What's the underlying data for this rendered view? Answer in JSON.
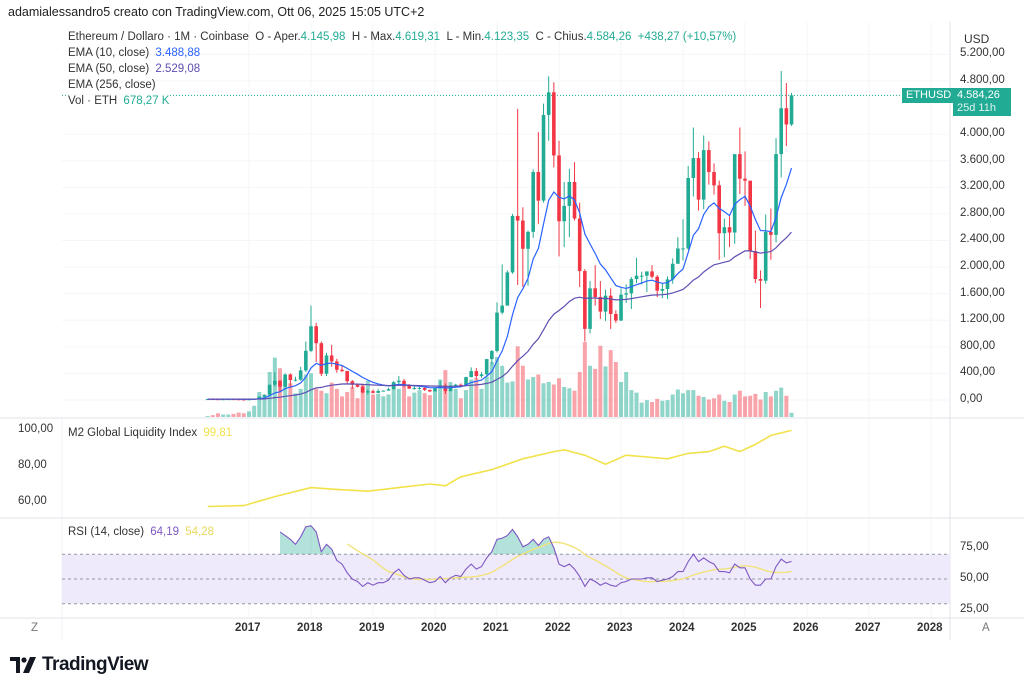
{
  "attribution": "adamialessandro5 creato con TradingView.com, Ott 06, 2025 15:05 UTC+2",
  "legend": {
    "symbol": "Ethereum / Dollaro · 1M · Coinbase",
    "open_label": "O - Aper.",
    "open": "4.145,98",
    "high_label": "H - Max.",
    "high": "4.619,31",
    "low_label": "L - Min.",
    "low": "4.123,35",
    "close_label": "C - Chius.",
    "close": "4.584,26",
    "change": "+438,27 (+10,57%)",
    "ema10_label": "EMA (10, close)",
    "ema10_value": "3.488,88",
    "ema50_label": "EMA (50, close)",
    "ema50_value": "2.529,08",
    "ema256_label": "EMA (256, close)",
    "vol_label": "Vol · ETH",
    "vol_value": "678,27 K"
  },
  "price_axis": {
    "currency": "USD",
    "ticks": [
      "5.200,00",
      "4.800,00",
      "4.000,00",
      "3.600,00",
      "3.200,00",
      "2.800,00",
      "2.400,00",
      "2.000,00",
      "1.600,00",
      "1.200,00",
      "800,00",
      "400,00",
      "0,00"
    ],
    "tick_values": [
      5200,
      4800,
      4000,
      3600,
      3200,
      2800,
      2400,
      2000,
      1600,
      1200,
      800,
      400,
      0
    ],
    "last_symbol": "ETHUSD",
    "last_price": "4.584,26",
    "countdown": "25d 11h"
  },
  "m2_pane": {
    "label": "M2 Global Liquidity Index",
    "value": "99,81",
    "ticks": [
      "100,00",
      "80,00",
      "60,00"
    ],
    "tick_values": [
      100,
      80,
      60
    ]
  },
  "rsi_pane": {
    "label": "RSI (14, close)",
    "value": "64,19",
    "ma_value": "54,28",
    "ticks": [
      "75,00",
      "50,00",
      "25,00"
    ],
    "tick_values": [
      75,
      50,
      25
    ],
    "bands": [
      70,
      50,
      30
    ]
  },
  "time_axis": {
    "labels": [
      "2017",
      "2018",
      "2019",
      "2020",
      "2021",
      "2022",
      "2023",
      "2024",
      "2025",
      "2026",
      "2027",
      "2028"
    ],
    "left_button": "Z",
    "right_button": "A"
  },
  "brand": "TradingView",
  "colors": {
    "up": "#22ab94",
    "down": "#f23645",
    "ema10": "#2962ff",
    "ema50": "#5e4fb3",
    "m2": "#f2e24a",
    "rsi": "#7e57c2",
    "rsi_ma": "#f2e27a",
    "rsi_band": "#efeafb"
  },
  "chart_data": {
    "type": "candlestick",
    "interval": "1M",
    "start": "2016-05",
    "end": "2025-10",
    "ylim": [
      0,
      5400
    ],
    "grid": true,
    "ohlc": [
      [
        11,
        14.5,
        9,
        14
      ],
      [
        14,
        21,
        10,
        12
      ],
      [
        12,
        14.5,
        10,
        11.5
      ],
      [
        11.5,
        12,
        10,
        12
      ],
      [
        12,
        13.5,
        11.5,
        13
      ],
      [
        13,
        13.5,
        10.5,
        11
      ],
      [
        11,
        11.5,
        8,
        8.5
      ],
      [
        8.5,
        8.5,
        7,
        8
      ],
      [
        8,
        11.5,
        8,
        10.7
      ],
      [
        10.7,
        16,
        10.5,
        16
      ],
      [
        16,
        55,
        15.5,
        50
      ],
      [
        50,
        80,
        43,
        80
      ],
      [
        80,
        230,
        78,
        230
      ],
      [
        230,
        420,
        200,
        290
      ],
      [
        290,
        300,
        130,
        200
      ],
      [
        200,
        400,
        190,
        385
      ],
      [
        385,
        400,
        200,
        300
      ],
      [
        300,
        350,
        280,
        305
      ],
      [
        305,
        500,
        290,
        445
      ],
      [
        445,
        880,
        420,
        740
      ],
      [
        740,
        1420,
        720,
        1110
      ],
      [
        1110,
        1160,
        570,
        855
      ],
      [
        855,
        880,
        360,
        395
      ],
      [
        395,
        710,
        360,
        670
      ],
      [
        670,
        830,
        500,
        580
      ],
      [
        580,
        620,
        410,
        455
      ],
      [
        455,
        515,
        420,
        435
      ],
      [
        435,
        440,
        250,
        283
      ],
      [
        283,
        300,
        170,
        230
      ],
      [
        230,
        240,
        190,
        198
      ],
      [
        198,
        220,
        100,
        113
      ],
      [
        113,
        160,
        80,
        133
      ],
      [
        133,
        160,
        100,
        107
      ],
      [
        107,
        165,
        102,
        136
      ],
      [
        136,
        145,
        126,
        141
      ],
      [
        141,
        185,
        140,
        162
      ],
      [
        162,
        285,
        160,
        268
      ],
      [
        268,
        360,
        230,
        290
      ],
      [
        290,
        315,
        190,
        218
      ],
      [
        218,
        240,
        165,
        172
      ],
      [
        172,
        225,
        155,
        180
      ],
      [
        180,
        200,
        155,
        182
      ],
      [
        182,
        195,
        135,
        152
      ],
      [
        152,
        155,
        117,
        130
      ],
      [
        130,
        185,
        127,
        179
      ],
      [
        179,
        290,
        175,
        218
      ],
      [
        218,
        250,
        90,
        133
      ],
      [
        133,
        225,
        130,
        207
      ],
      [
        207,
        245,
        180,
        230
      ],
      [
        230,
        250,
        215,
        225
      ],
      [
        225,
        350,
        220,
        345
      ],
      [
        345,
        490,
        340,
        435
      ],
      [
        435,
        480,
        310,
        360
      ],
      [
        360,
        420,
        335,
        386
      ],
      [
        386,
        620,
        370,
        615
      ],
      [
        615,
        750,
        530,
        737
      ],
      [
        737,
        1470,
        715,
        1315
      ],
      [
        1315,
        2040,
        1290,
        1420
      ],
      [
        1420,
        1950,
        1430,
        1920
      ],
      [
        1920,
        2800,
        1900,
        2770
      ],
      [
        2770,
        4380,
        1730,
        2700
      ],
      [
        2700,
        2900,
        1700,
        2275
      ],
      [
        2275,
        2550,
        1720,
        2530
      ],
      [
        2530,
        3470,
        2440,
        3430
      ],
      [
        3430,
        4030,
        2650,
        3000
      ],
      [
        3000,
        4460,
        2970,
        4290
      ],
      [
        4290,
        4870,
        3900,
        4630
      ],
      [
        4630,
        4780,
        3500,
        3680
      ],
      [
        3680,
        3900,
        2160,
        2690
      ],
      [
        2690,
        3280,
        2300,
        2920
      ],
      [
        2920,
        3480,
        2450,
        3280
      ],
      [
        3280,
        3580,
        2700,
        2730
      ],
      [
        2730,
        2970,
        1700,
        1940
      ],
      [
        1940,
        1970,
        880,
        1070
      ],
      [
        1070,
        1790,
        1000,
        1680
      ],
      [
        1680,
        2030,
        1420,
        1550
      ],
      [
        1550,
        1790,
        1220,
        1330
      ],
      [
        1330,
        1660,
        1190,
        1570
      ],
      [
        1570,
        1680,
        1070,
        1295
      ],
      [
        1295,
        1350,
        1160,
        1195
      ],
      [
        1195,
        1680,
        1190,
        1585
      ],
      [
        1585,
        1740,
        1460,
        1605
      ],
      [
        1605,
        1850,
        1370,
        1820
      ],
      [
        1820,
        2140,
        1760,
        1870
      ],
      [
        1870,
        1930,
        1740,
        1870
      ],
      [
        1870,
        1930,
        1625,
        1935
      ],
      [
        1935,
        2030,
        1830,
        1855
      ],
      [
        1855,
        1880,
        1550,
        1645
      ],
      [
        1645,
        1750,
        1530,
        1670
      ],
      [
        1670,
        1860,
        1520,
        1815
      ],
      [
        1815,
        2130,
        1750,
        2050
      ],
      [
        2050,
        2450,
        2050,
        2280
      ],
      [
        2280,
        2720,
        2100,
        2280
      ],
      [
        2280,
        3520,
        2260,
        3340
      ],
      [
        3340,
        4100,
        3060,
        3640
      ],
      [
        3640,
        3730,
        2850,
        3015
      ],
      [
        3015,
        3980,
        2870,
        3760
      ],
      [
        3760,
        3890,
        3240,
        3430
      ],
      [
        3430,
        3560,
        3090,
        3230
      ],
      [
        3230,
        3300,
        2110,
        2510
      ],
      [
        2510,
        2730,
        2150,
        2600
      ],
      [
        2600,
        2760,
        2300,
        2520
      ],
      [
        2520,
        3680,
        2350,
        3700
      ],
      [
        3700,
        4100,
        3100,
        3330
      ],
      [
        3330,
        3740,
        2920,
        3300
      ],
      [
        3300,
        3300,
        2120,
        2240
      ],
      [
        2240,
        2550,
        1760,
        1820
      ],
      [
        1820,
        1950,
        1385,
        1795
      ],
      [
        1795,
        2790,
        1750,
        2530
      ],
      [
        2530,
        2880,
        2110,
        2485
      ],
      [
        2485,
        3940,
        2370,
        3700
      ],
      [
        3700,
        4950,
        3350,
        4390
      ],
      [
        4390,
        4770,
        3820,
        4145.98
      ],
      [
        4145.98,
        4619.31,
        4123.35,
        4584.26
      ]
    ],
    "volume_k": [
      150,
      300,
      600,
      400,
      400,
      500,
      700,
      600,
      900,
      1800,
      4000,
      3500,
      7200,
      9500,
      7800,
      6200,
      5400,
      3800,
      4500,
      6800,
      7000,
      4500,
      4200,
      3800,
      5500,
      4500,
      3300,
      4000,
      4800,
      3000,
      5200,
      5800,
      3600,
      3700,
      3300,
      3600,
      5400,
      4500,
      5100,
      3300,
      3900,
      4300,
      3800,
      3500,
      4300,
      6000,
      7500,
      5600,
      4500,
      3000,
      4300,
      6000,
      6200,
      4500,
      6500,
      8800,
      9600,
      8200,
      5500,
      5700,
      11300,
      8200,
      6000,
      6400,
      6800,
      5400,
      5600,
      5200,
      6200,
      4800,
      4600,
      4200,
      7200,
      12000,
      8200,
      7700,
      11400,
      8100,
      10700,
      8800,
      5600,
      7200,
      4300,
      3900,
      2300,
      2700,
      2400,
      2900,
      2600,
      2700,
      3600,
      4400,
      3800,
      4300,
      4300,
      3400,
      3200,
      2800,
      3000,
      3600,
      2600,
      2400,
      3600,
      4200,
      3300,
      3400,
      3700,
      2800,
      4000,
      3300,
      4200,
      4700,
      3400,
      678.27
    ],
    "ema_lengths": [
      10,
      50
    ],
    "m2_series": [
      [
        "2016-05",
        57.5
      ],
      [
        "2016-12",
        58
      ],
      [
        "2017-06",
        63
      ],
      [
        "2018-01",
        68
      ],
      [
        "2018-06",
        67
      ],
      [
        "2018-12",
        66
      ],
      [
        "2019-06",
        68
      ],
      [
        "2019-12",
        70
      ],
      [
        "2020-03",
        69
      ],
      [
        "2020-06",
        74
      ],
      [
        "2020-12",
        78
      ],
      [
        "2021-06",
        84
      ],
      [
        "2021-12",
        88
      ],
      [
        "2022-02",
        89
      ],
      [
        "2022-06",
        86
      ],
      [
        "2022-10",
        81
      ],
      [
        "2023-02",
        86
      ],
      [
        "2023-06",
        85
      ],
      [
        "2023-10",
        84
      ],
      [
        "2024-02",
        87
      ],
      [
        "2024-06",
        88
      ],
      [
        "2024-09",
        91
      ],
      [
        "2024-12",
        88
      ],
      [
        "2025-03",
        92
      ],
      [
        "2025-06",
        97
      ],
      [
        "2025-10",
        99.8
      ]
    ],
    "m2_ylim": [
      50,
      105
    ],
    "rsi_start": "2017-07",
    "rsi": [
      88,
      85,
      82,
      78,
      84,
      92,
      93,
      88,
      72,
      78,
      74,
      65,
      62,
      55,
      50,
      48,
      44,
      47,
      45,
      47,
      47,
      49,
      55,
      58,
      53,
      50,
      51,
      51,
      49,
      47,
      48,
      52,
      47,
      51,
      53,
      52,
      58,
      62,
      58,
      60,
      67,
      72,
      82,
      83,
      85,
      90,
      84,
      76,
      78,
      82,
      77,
      82,
      84,
      75,
      62,
      60,
      62,
      58,
      52,
      44,
      50,
      48,
      45,
      47,
      45,
      44,
      47,
      48,
      50,
      50,
      50,
      51,
      51,
      48,
      49,
      50,
      52,
      56,
      56,
      64,
      70,
      64,
      67,
      64,
      62,
      56,
      56,
      55,
      62,
      59,
      59,
      50,
      45,
      45,
      50,
      50,
      60,
      66,
      63,
      64.19
    ],
    "rsi_ma_length": 14
  }
}
